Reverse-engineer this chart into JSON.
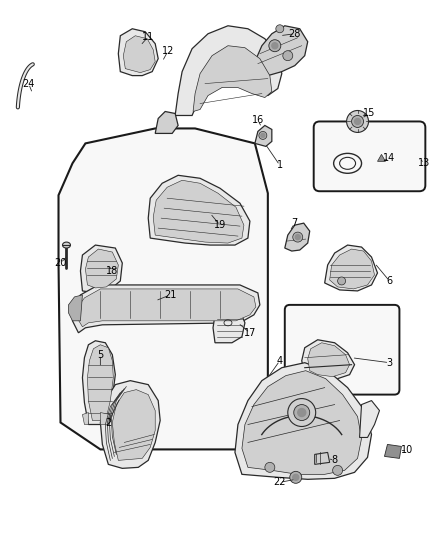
{
  "background_color": "#ffffff",
  "fig_width": 4.38,
  "fig_height": 5.33,
  "dpi": 100,
  "line_color": "#2a2a2a",
  "label_color": "#000000",
  "label_fontsize": 7.0,
  "part_fill_light": "#e8e8e8",
  "part_fill_mid": "#d0d0d0",
  "part_fill_dark": "#b0b0b0",
  "part_fill_darker": "#909090",
  "panel_fill": "#f8f8f8",
  "panel_edge": "#1a1a1a",
  "box3_fill": "#f8f8f8",
  "box14_fill": "#f8f8f8"
}
